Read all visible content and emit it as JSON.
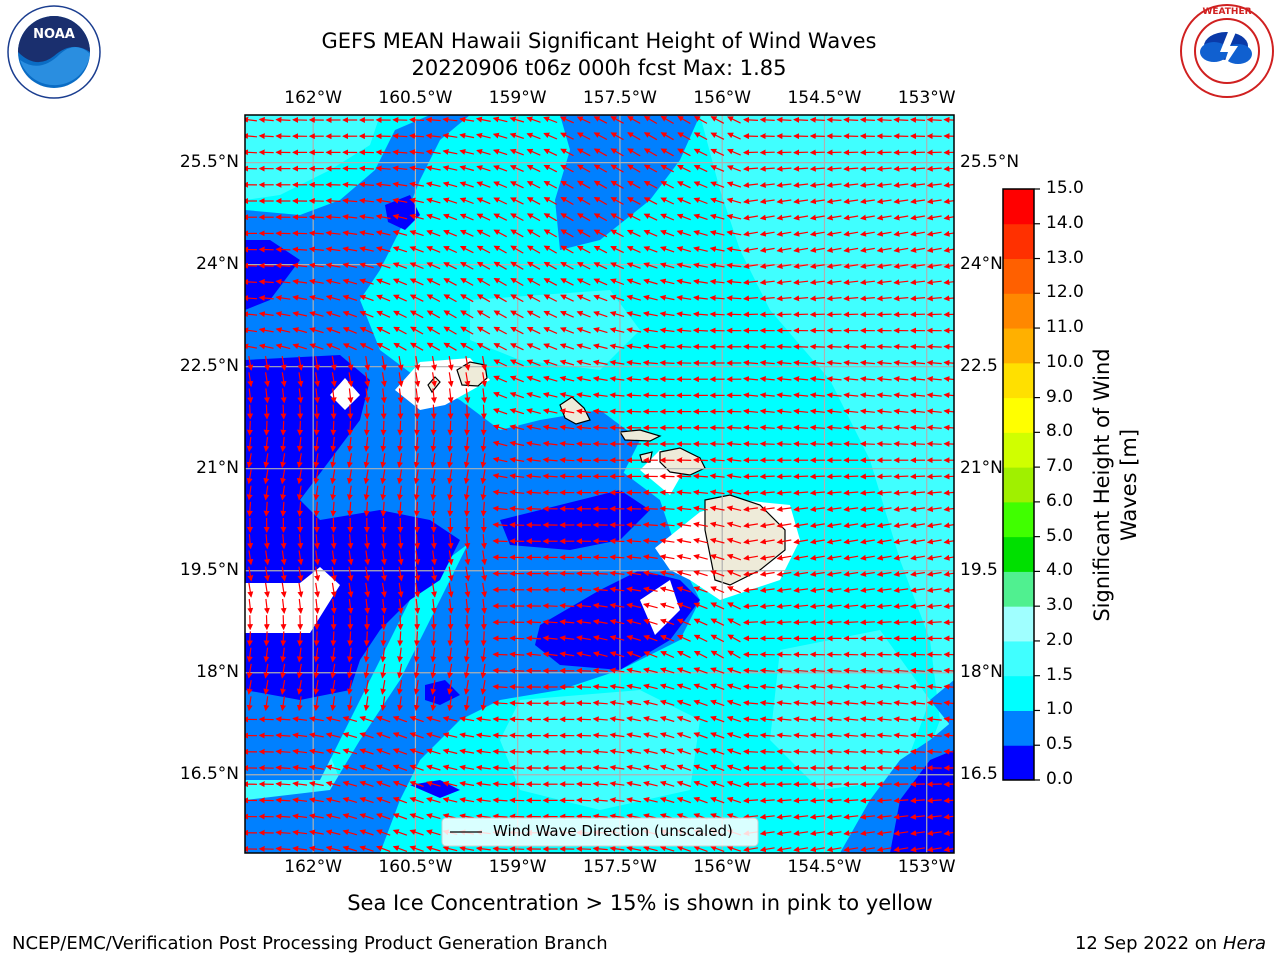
{
  "header": {
    "title_line1": "GEFS MEAN Hawaii Significant Height of Wind Waves",
    "title_line2": "20220906 t06z 000h fcst   Max: 1.85"
  },
  "logos": {
    "left": {
      "icon": "noaa-logo",
      "text": "NOAA",
      "ring_text": "NATIONAL OCEANIC AND ATMOSPHERIC ADMINISTRATION · U.S. DEPARTMENT OF COMMERCE"
    },
    "right": {
      "icon": "nws-logo",
      "ring_text": "NATIONAL WEATHER SERVICE"
    }
  },
  "map": {
    "lon_ticks": [
      "162°W",
      "160.5°W",
      "159°W",
      "157.5°W",
      "156°W",
      "154.5°W",
      "153°W"
    ],
    "lat_ticks": [
      "25.5°N",
      "24°N",
      "22.5°N",
      "21°N",
      "19.5°N",
      "18°N",
      "16.5°N"
    ],
    "lat_ticks_right": [
      "25.5°N",
      "24°N",
      "22.5",
      "21°N",
      "19.5",
      "18°N",
      "16.5"
    ],
    "lon_range": [
      -163,
      -152.6
    ],
    "lat_range": [
      15.35,
      26.2
    ],
    "legend_label": "Wind Wave Direction (unscaled)",
    "arrow_color": "#ff0000",
    "land_color": "#eeebd9",
    "grid_color": "#b0b0b0"
  },
  "colorbar": {
    "label_line1": "Significant Height of Wind",
    "label_line2": "Waves [m]",
    "ticks": [
      "0.0",
      "0.5",
      "1.0",
      "1.5",
      "2.0",
      "3.0",
      "4.0",
      "5.0",
      "6.0",
      "7.0",
      "8.0",
      "9.0",
      "10.0",
      "11.0",
      "12.0",
      "13.0",
      "14.0",
      "15.0"
    ],
    "colors": [
      "#0000ff",
      "#0080ff",
      "#00ffff",
      "#40ffff",
      "#a0ffff",
      "#50f090",
      "#00e000",
      "#40ff00",
      "#a0f000",
      "#d0ff00",
      "#ffff00",
      "#ffe000",
      "#ffb000",
      "#ff8800",
      "#ff6000",
      "#ff3000",
      "#ff0000"
    ]
  },
  "footer": {
    "sea_ice_note": "Sea Ice Concentration > 15% is shown in pink to yellow",
    "branch": "NCEP/EMC/Verification Post Processing Product Generation Branch",
    "date": "12 Sep 2022 on",
    "machine": "Hera"
  }
}
